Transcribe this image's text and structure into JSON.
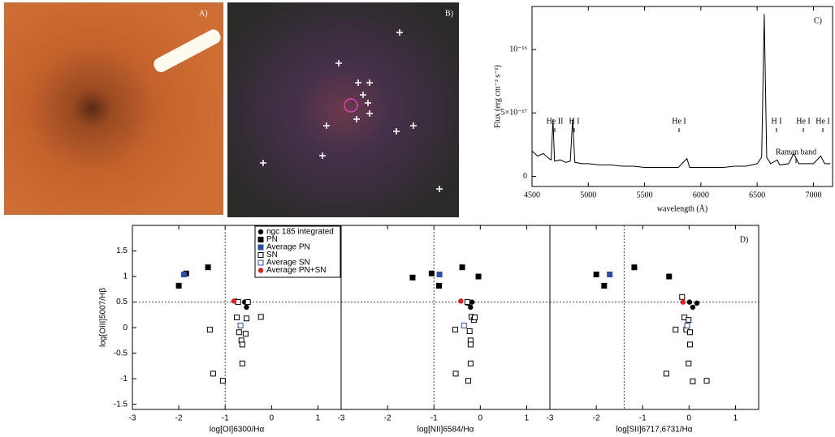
{
  "panels": {
    "a": {
      "label": "A)"
    },
    "b": {
      "label": "B)"
    }
  },
  "chart_data": [
    {
      "type": "line",
      "panel_label": "C)",
      "x_label": "wavelength (Å)",
      "y_label": "Flux (erg cm⁻² s⁻¹)",
      "xlim": [
        4500,
        7170
      ],
      "ylim": [
        -8e-18,
        1.34e-16
      ],
      "xticks": [
        4500,
        5000,
        5500,
        6000,
        6500,
        7000
      ],
      "yticks": [
        0,
        {
          "value": 5e-17,
          "label": "5×10⁻¹⁷"
        },
        {
          "value": 1e-16,
          "label": "10⁻¹⁶"
        }
      ],
      "annotations": [
        "He II",
        "H I",
        "He I",
        "H I",
        "He I",
        "He I",
        "Raman band"
      ],
      "x": [
        4500,
        4550,
        4600,
        4650,
        4670,
        4686,
        4700,
        4750,
        4800,
        4840,
        4861,
        4880,
        4950,
        5000,
        5100,
        5200,
        5300,
        5400,
        5500,
        5600,
        5700,
        5800,
        5876,
        5900,
        6000,
        6100,
        6200,
        6300,
        6400,
        6500,
        6540,
        6563,
        6585,
        6620,
        6678,
        6700,
        6780,
        6825,
        6870,
        6950,
        7000,
        7065,
        7100,
        7150
      ],
      "series": [
        {
          "color": "#000000",
          "values": [
            2e-17,
            1.6e-17,
            1.8e-17,
            1.4e-17,
            1.3e-17,
            4.5e-17,
            1.2e-17,
            1.3e-17,
            1.1e-17,
            1.2e-17,
            4.5e-17,
            1.1e-17,
            1e-17,
            1e-17,
            9e-18,
            9e-18,
            8e-18,
            8e-18,
            7e-18,
            7e-18,
            7e-18,
            7e-18,
            1.4e-17,
            7e-18,
            7e-18,
            7e-18,
            7e-18,
            8e-18,
            8e-18,
            1e-17,
            1.5e-17,
            1.28e-16,
            1.5e-17,
            1e-17,
            1.3e-17,
            9e-18,
            1e-17,
            1.8e-17,
            1e-17,
            1e-17,
            1e-17,
            1.6e-17,
            1e-17,
            1e-17
          ]
        }
      ]
    },
    {
      "type": "scatter",
      "x_label": "log[OI]6300/Hα",
      "y_label": "log[OIII]5007/Hβ",
      "xlim": [
        -3,
        1.5
      ],
      "ylim": [
        -1.6,
        2.0
      ],
      "xticks": [
        -3,
        -2,
        -1,
        0,
        1
      ],
      "yticks": [
        -1.5,
        -1,
        -0.5,
        0,
        0.5,
        1,
        1.5
      ],
      "reference_x": -1,
      "reference_y": 0.5,
      "legend": "top-right",
      "series": [
        {
          "name": "ngc 185 integrated",
          "color": "#000000",
          "marker": "circle",
          "x": [
            -0.77,
            -0.58,
            -0.54
          ],
          "y": [
            0.52,
            0.5,
            0.4
          ]
        },
        {
          "name": "PN",
          "color": "#000000",
          "marker": "square",
          "x": [
            -2.0,
            -1.84,
            -1.37
          ],
          "y": [
            0.82,
            1.06,
            1.18
          ]
        },
        {
          "name": "Average PN",
          "color": "#2b4fa8",
          "marker": "square",
          "x": [
            -1.89
          ],
          "y": [
            1.04
          ]
        },
        {
          "name": "SN",
          "color": "#000000",
          "marker": "open-square",
          "x": [
            -1.33,
            -1.26,
            -1.05,
            -0.75,
            -0.72,
            -0.7,
            -0.65,
            -0.63,
            -0.63,
            -0.54,
            -0.56,
            -0.51,
            -0.23
          ],
          "y": [
            -0.04,
            -0.9,
            -1.04,
            0.2,
            0.5,
            -0.09,
            -0.25,
            -0.33,
            -0.7,
            0.18,
            -0.12,
            0.5,
            0.21
          ]
        },
        {
          "name": "Average SN",
          "color": "#2b4fa8",
          "marker": "open-square",
          "x": [
            -0.67
          ],
          "y": [
            0.04
          ]
        },
        {
          "name": "Average PN+SN",
          "color": "#e02020",
          "marker": "circle",
          "x": [
            -0.81
          ],
          "y": [
            0.52
          ]
        }
      ]
    },
    {
      "type": "scatter",
      "x_label": "log[NII]6584/Hα",
      "xlim": [
        -3,
        1.5
      ],
      "ylim": [
        -1.6,
        2.0
      ],
      "xticks": [
        -3,
        -2,
        -1,
        0,
        1
      ],
      "reference_x": -1,
      "reference_y": 0.5,
      "series": [
        {
          "color": "#000000",
          "marker": "circle",
          "x": [
            -0.28,
            -0.18,
            -0.21
          ],
          "y": [
            0.48,
            0.5,
            0.4
          ]
        },
        {
          "color": "#000000",
          "marker": "square",
          "x": [
            -1.46,
            -1.05,
            -0.89,
            -0.39,
            -0.04
          ],
          "y": [
            0.98,
            1.06,
            0.82,
            1.18,
            1.0
          ]
        },
        {
          "color": "#2b4fa8",
          "marker": "square",
          "x": [
            -0.88
          ],
          "y": [
            1.04
          ]
        },
        {
          "color": "#000000",
          "marker": "open-square",
          "x": [
            -0.54,
            -0.53,
            -0.26,
            -0.28,
            -0.19,
            -0.14,
            -0.23,
            -0.21,
            -0.21,
            -0.21,
            -0.12
          ],
          "y": [
            -0.04,
            -0.9,
            -1.04,
            0.5,
            0.21,
            0.15,
            -0.07,
            -0.25,
            -0.33,
            -0.7,
            0.2
          ]
        },
        {
          "color": "#2b4fa8",
          "marker": "open-square",
          "x": [
            -0.35
          ],
          "y": [
            0.04
          ]
        },
        {
          "color": "#e02020",
          "marker": "circle",
          "x": [
            -0.42
          ],
          "y": [
            0.52
          ]
        }
      ]
    },
    {
      "type": "scatter",
      "panel_label": "D)",
      "x_label": "log[SII]6717,6731/Hα",
      "xlim": [
        -3,
        1.5
      ],
      "ylim": [
        -1.6,
        2.0
      ],
      "xticks": [
        -3,
        -2,
        -1,
        0,
        1
      ],
      "reference_x": -1.4,
      "reference_y": 0.5,
      "series": [
        {
          "color": "#000000",
          "marker": "circle",
          "x": [
            0.01,
            0.17,
            0.08
          ],
          "y": [
            0.5,
            0.48,
            0.4
          ]
        },
        {
          "color": "#000000",
          "marker": "square",
          "x": [
            -2.0,
            -1.83,
            -1.18,
            -0.43
          ],
          "y": [
            1.04,
            0.82,
            1.18,
            1.0
          ]
        },
        {
          "color": "#2b4fa8",
          "marker": "square",
          "x": [
            -1.71
          ],
          "y": [
            1.04
          ]
        },
        {
          "color": "#000000",
          "marker": "open-square",
          "x": [
            -0.49,
            -0.29,
            -0.15,
            -0.1,
            -0.01,
            -0.06,
            0.02,
            0.02,
            -0.01,
            0.08,
            0.38
          ],
          "y": [
            -0.9,
            -0.04,
            0.6,
            0.2,
            0.15,
            -0.04,
            -0.09,
            -0.33,
            -0.7,
            -1.05,
            -1.04
          ]
        },
        {
          "color": "#2b4fa8",
          "marker": "open-square",
          "x": [
            -0.04
          ],
          "y": [
            0.04
          ]
        },
        {
          "color": "#e02020",
          "marker": "circle",
          "x": [
            -0.13
          ],
          "y": [
            0.5
          ]
        }
      ]
    }
  ]
}
